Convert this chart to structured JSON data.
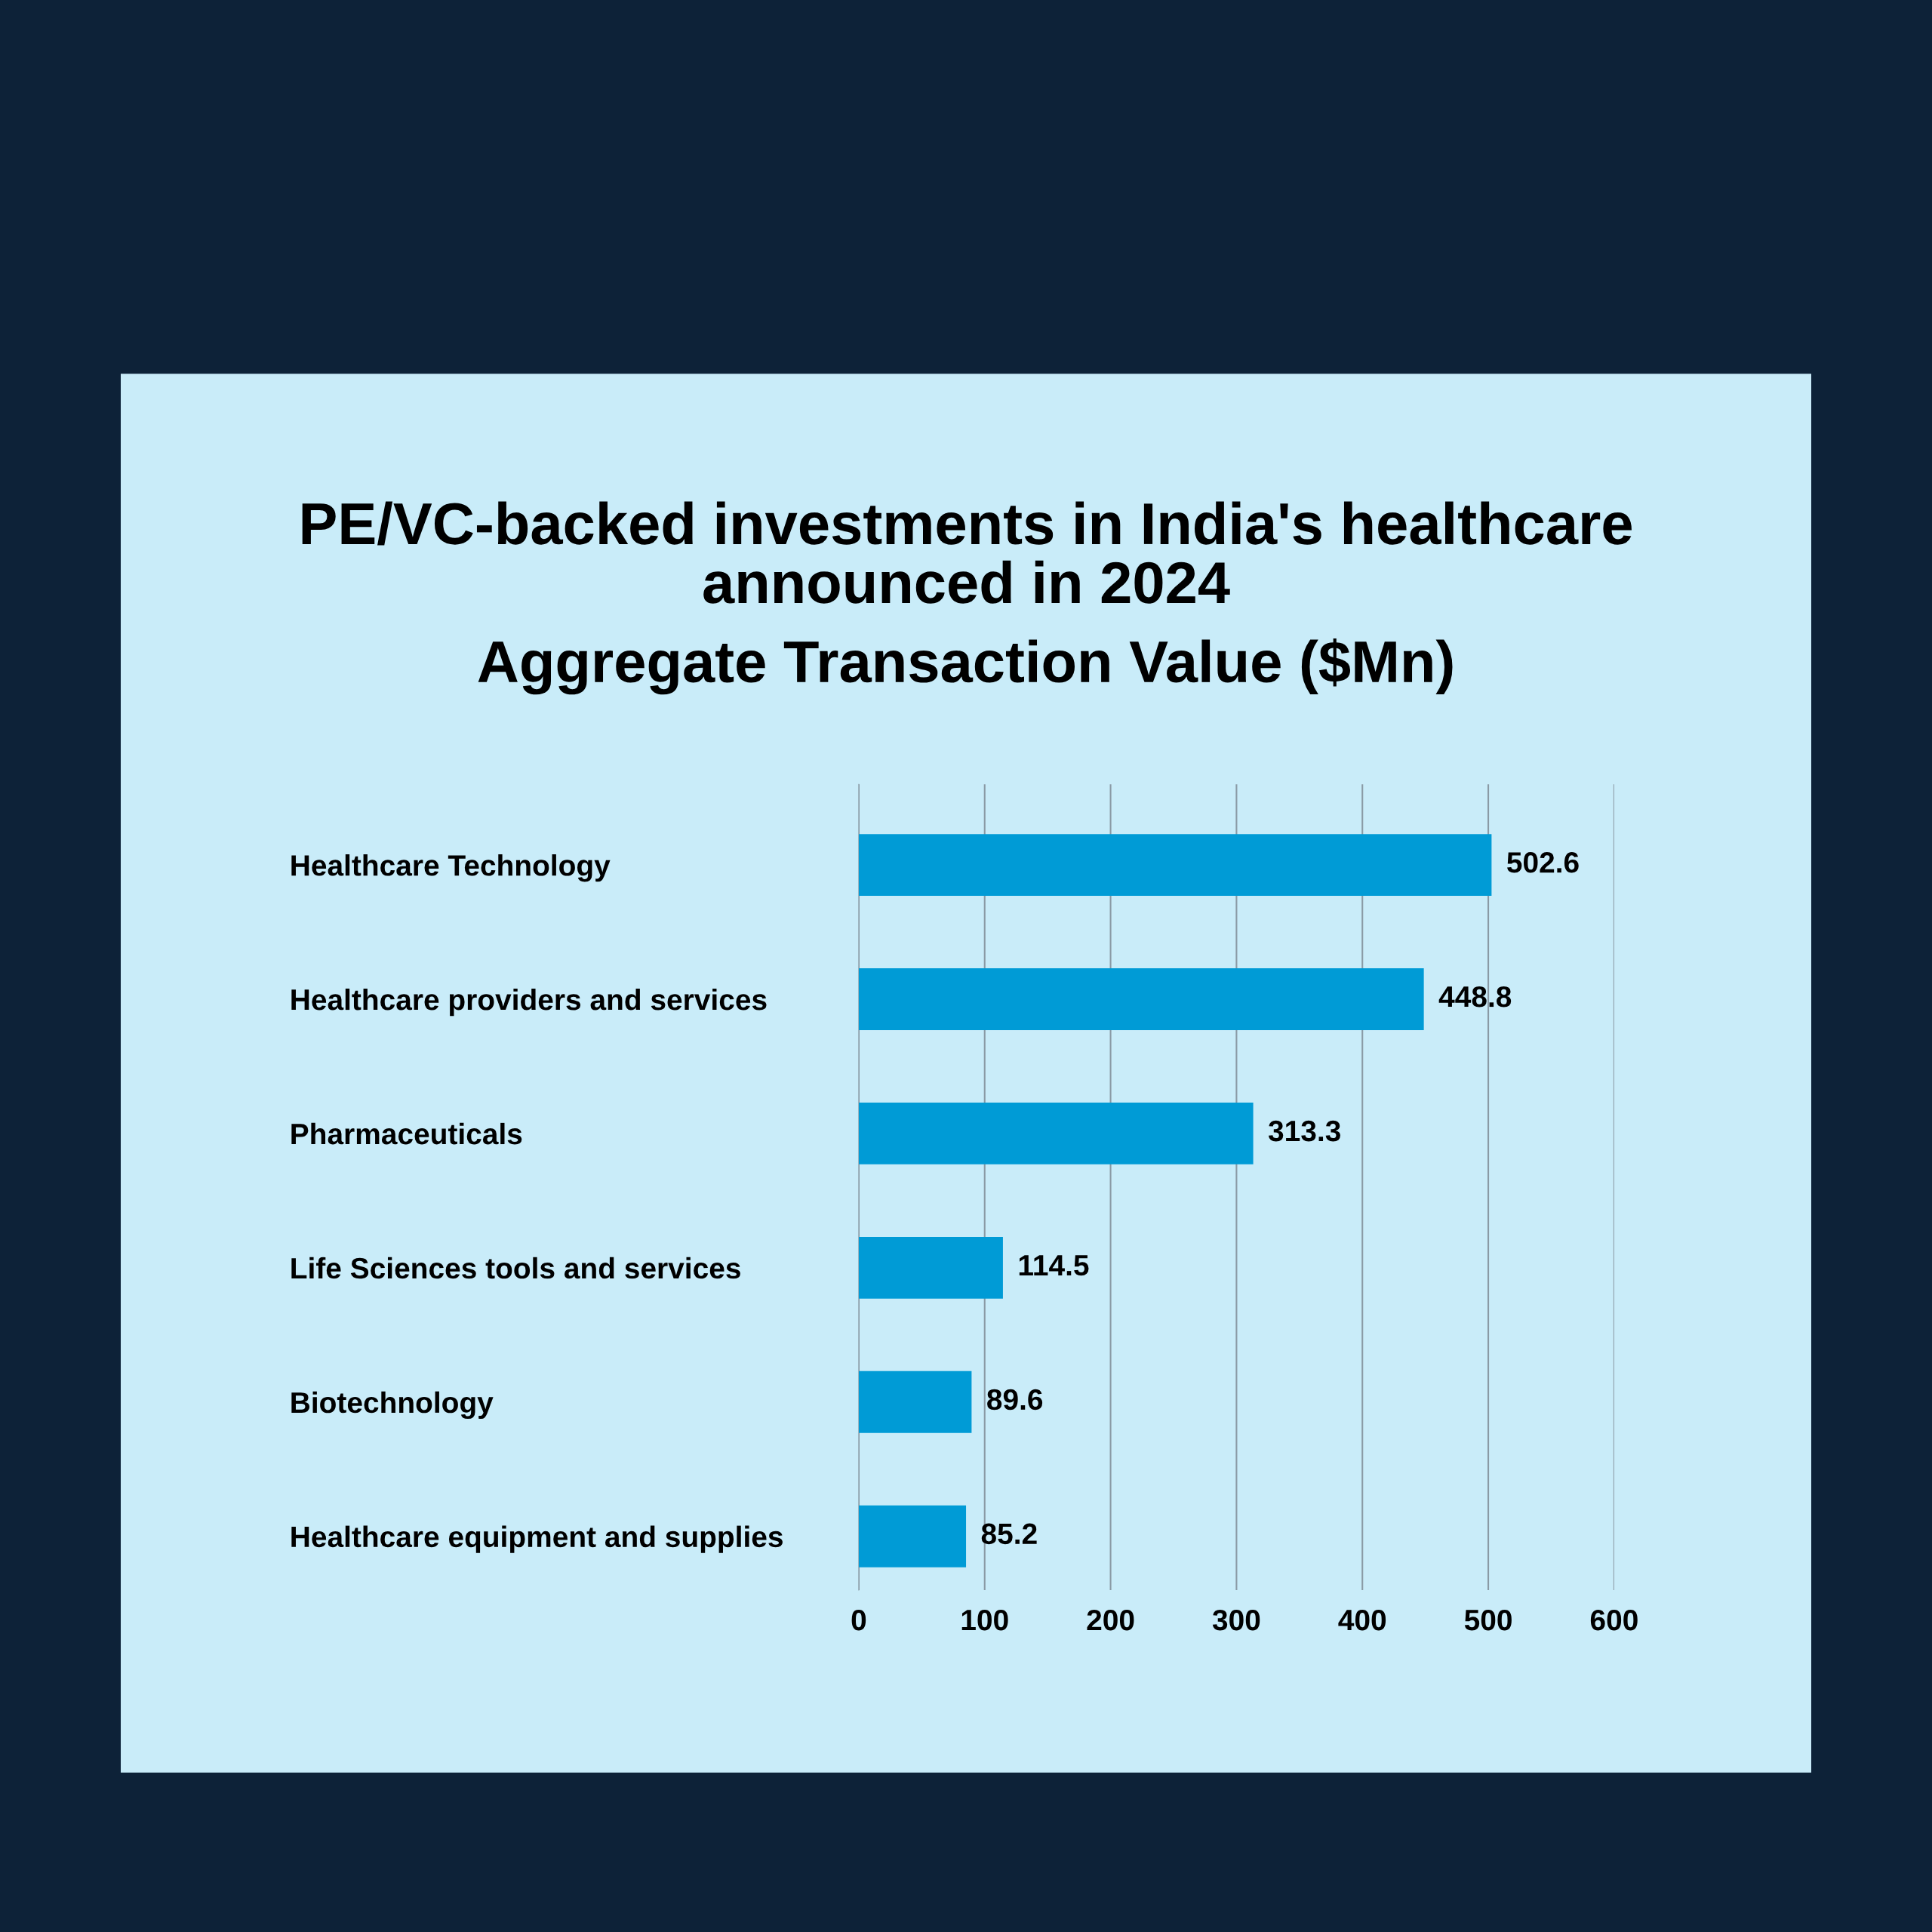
{
  "chart_data": {
    "type": "bar",
    "orientation": "horizontal",
    "title": "PE/VC-backed investments in India's healthcare\nannounced in 2024",
    "subtitle": "Aggregate Transaction Value ($Mn)",
    "categories": [
      "Healthcare Technology",
      "Healthcare providers and services",
      "Pharmaceuticals",
      "Life Sciences tools and services",
      "Biotechnology",
      "Healthcare equipment and supplies"
    ],
    "values": [
      502.6,
      448.8,
      313.3,
      114.5,
      89.6,
      85.2
    ],
    "color": "#009bd6",
    "xlim": [
      0,
      600
    ],
    "xticks": [
      0,
      100,
      200,
      300,
      400,
      500,
      600
    ],
    "grid": "x",
    "data_labels": true
  }
}
